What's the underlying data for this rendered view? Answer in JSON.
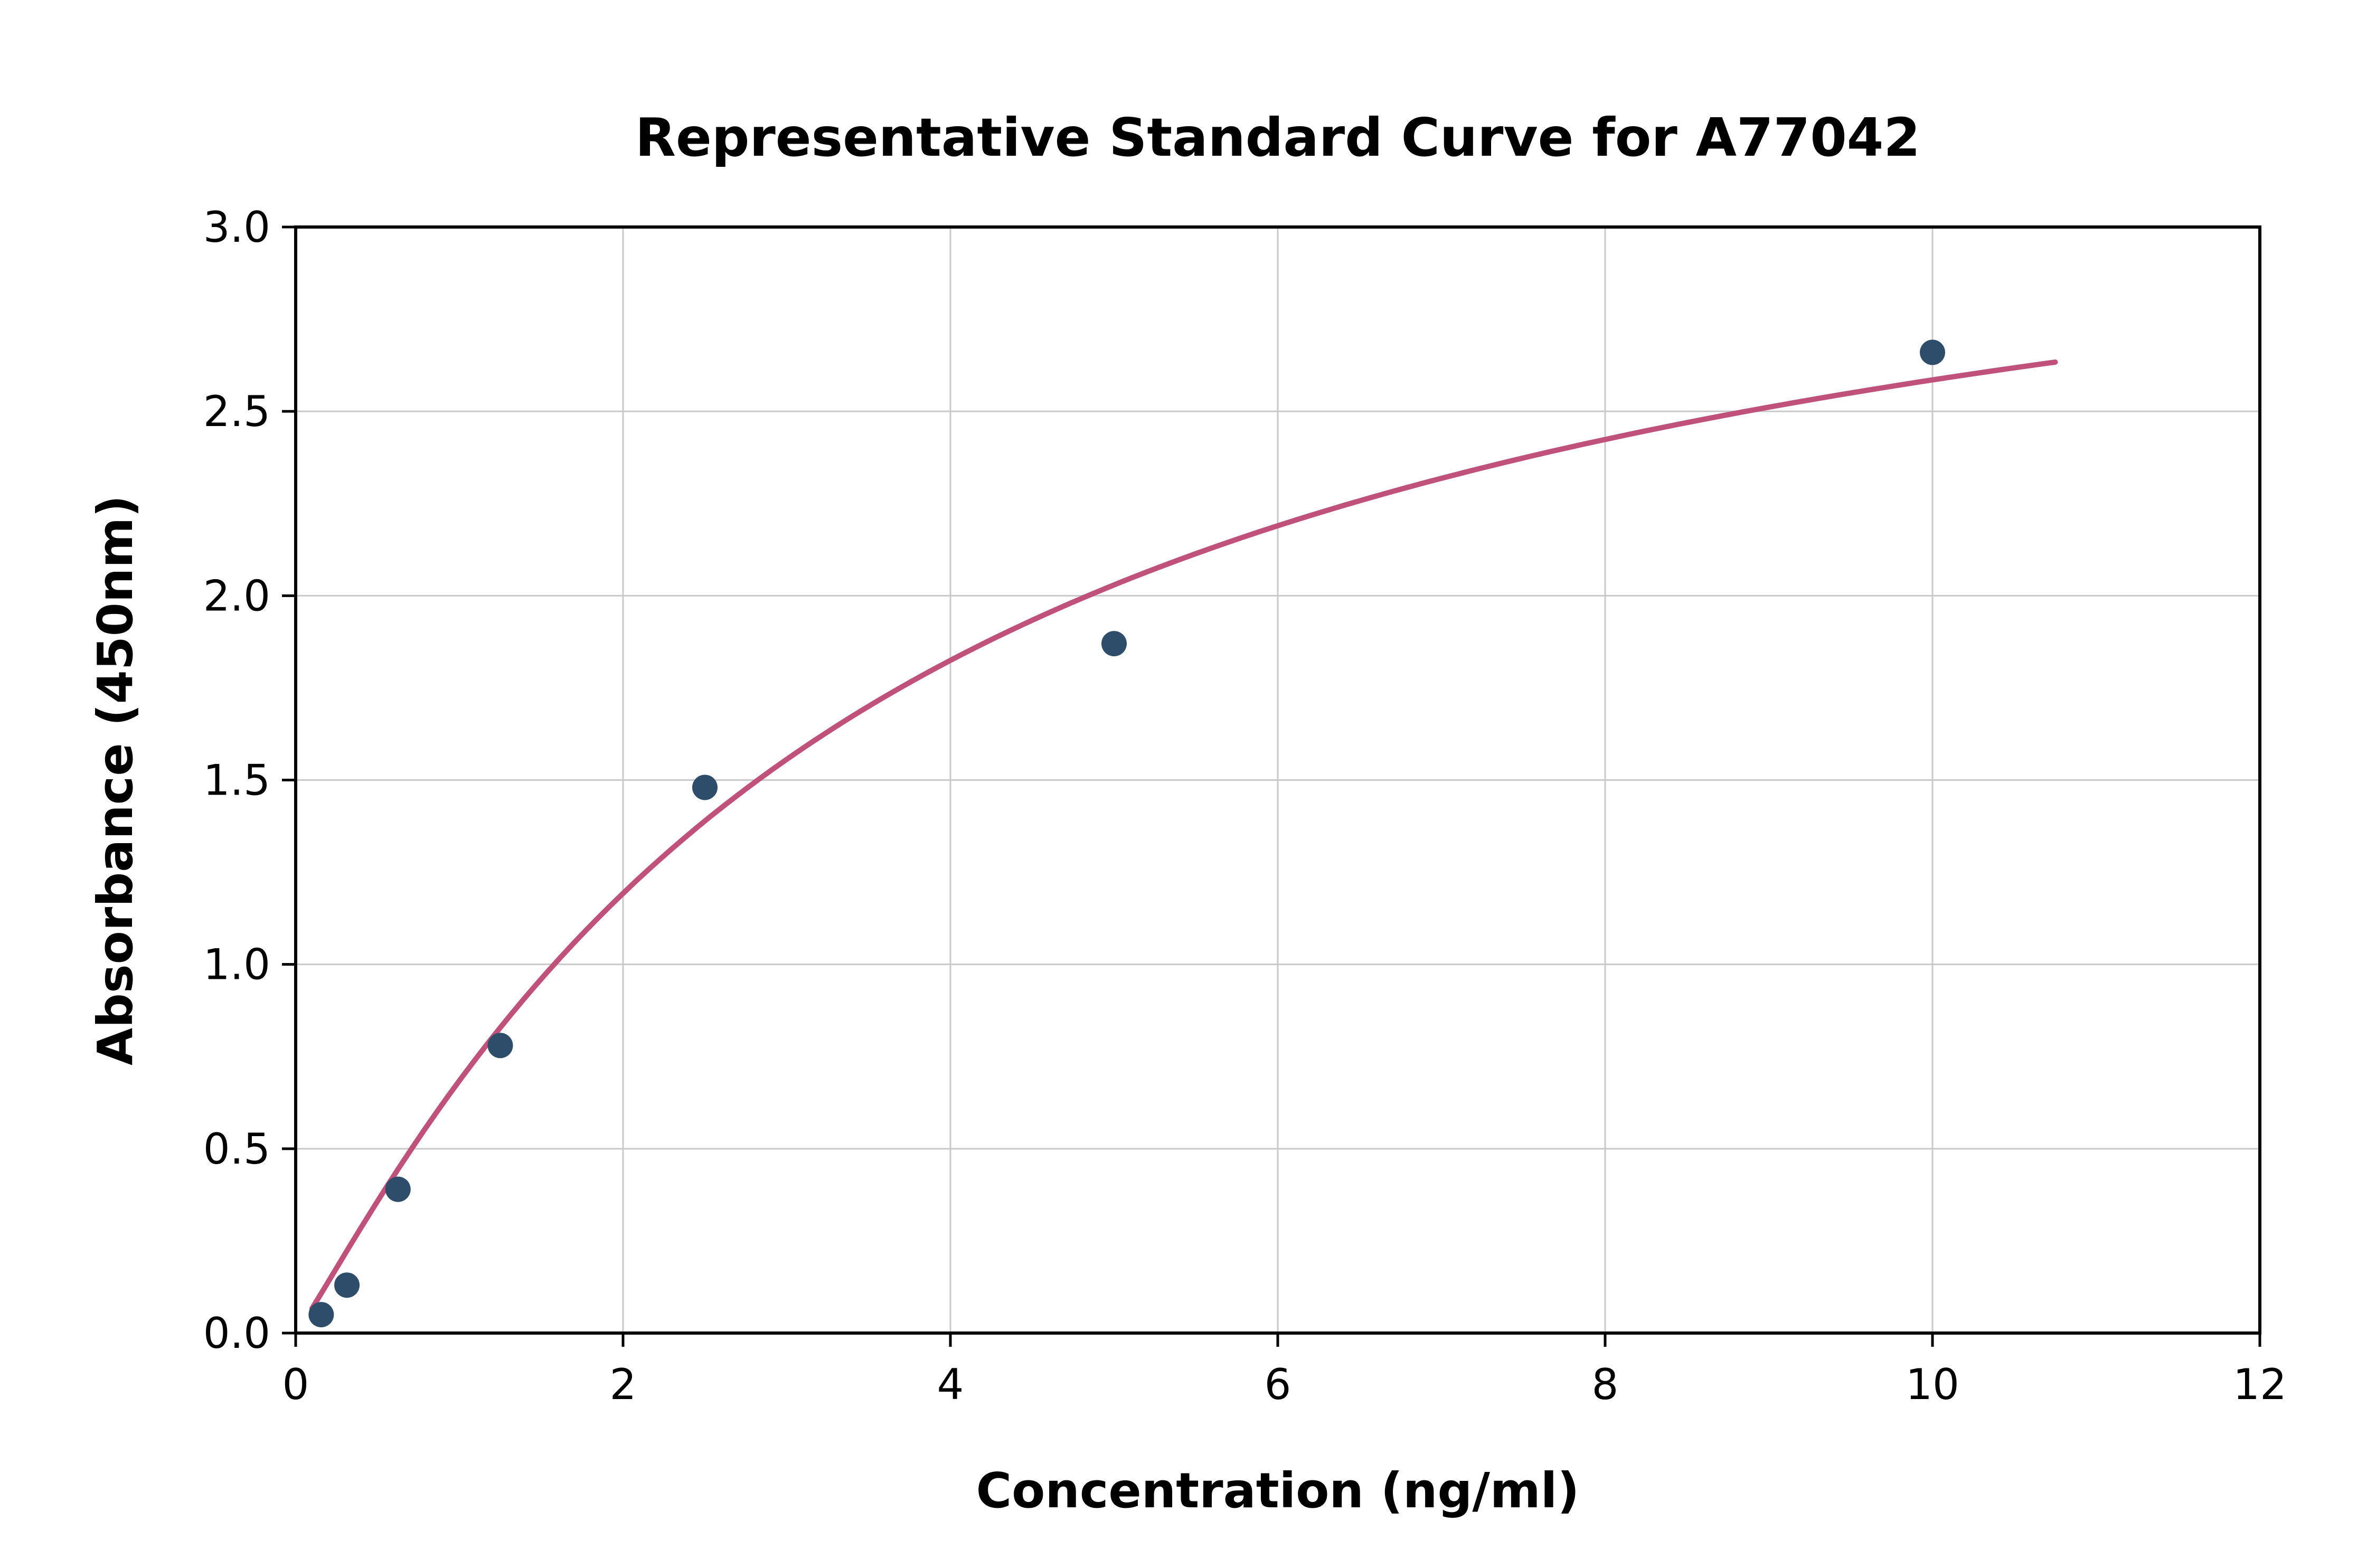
{
  "chart_data": {
    "type": "scatter",
    "title": "Representative Standard Curve for A77042",
    "xlabel": "Concentration (ng/ml)",
    "ylabel": "Absorbance (450nm)",
    "xlim": [
      0,
      12
    ],
    "ylim": [
      0,
      3
    ],
    "xticks": [
      0,
      2,
      4,
      6,
      8,
      10,
      12
    ],
    "xtick_labels": [
      "0",
      "2",
      "4",
      "6",
      "8",
      "10",
      "12"
    ],
    "yticks": [
      0,
      0.5,
      1.0,
      1.5,
      2.0,
      2.5,
      3.0
    ],
    "ytick_labels": [
      "0.0",
      "0.5",
      "1.0",
      "1.5",
      "2.0",
      "2.5",
      "3.0"
    ],
    "grid": true,
    "legend": "none",
    "points": [
      {
        "x": 0.156,
        "y": 0.05
      },
      {
        "x": 0.313,
        "y": 0.13
      },
      {
        "x": 0.625,
        "y": 0.39
      },
      {
        "x": 1.25,
        "y": 0.78
      },
      {
        "x": 2.5,
        "y": 1.48
      },
      {
        "x": 5.0,
        "y": 1.87
      },
      {
        "x": 10.0,
        "y": 2.66
      }
    ],
    "fit_curve": {
      "model": "4PL",
      "params": {
        "a": 0.0,
        "b": 1.1,
        "c": 3.5,
        "d": 3.4
      },
      "x_range": [
        0.1,
        10.75
      ],
      "color": "#c0517a"
    },
    "point_color": "#2e4d6b",
    "point_radius": 24,
    "grid_color": "#c9c9c9",
    "axis_color": "#000000",
    "background": "#ffffff"
  }
}
